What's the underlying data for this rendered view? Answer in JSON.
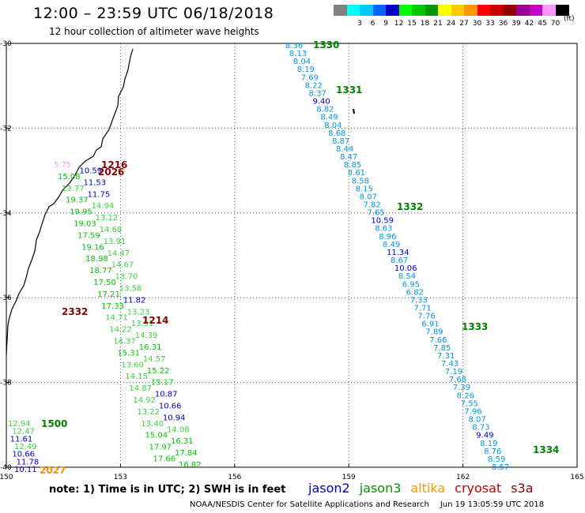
{
  "header": {
    "title": "12:00 – 23:59 UTC 06/18/2018",
    "subtitle": "12 hour collection of altimeter wave heights"
  },
  "scale": {
    "unit": "(ft)",
    "bins": [
      {
        "label": "",
        "color": "#808080"
      },
      {
        "label": "3",
        "color": "#00ffff"
      },
      {
        "label": "6",
        "color": "#00c8ff"
      },
      {
        "label": "9",
        "color": "#0064ff"
      },
      {
        "label": "12",
        "color": "#0000c8"
      },
      {
        "label": "15",
        "color": "#00ff00"
      },
      {
        "label": "18",
        "color": "#00c800"
      },
      {
        "label": "21",
        "color": "#009600"
      },
      {
        "label": "24",
        "color": "#ffff00"
      },
      {
        "label": "27",
        "color": "#ffc800"
      },
      {
        "label": "30",
        "color": "#ff9600"
      },
      {
        "label": "33",
        "color": "#ff0000"
      },
      {
        "label": "36",
        "color": "#c80000"
      },
      {
        "label": "39",
        "color": "#960000"
      },
      {
        "label": "42",
        "color": "#960096"
      },
      {
        "label": "45",
        "color": "#c800c8"
      },
      {
        "label": "70",
        "color": "#ff96ff"
      },
      {
        "label": "",
        "color": "#000000"
      }
    ]
  },
  "axes": {
    "lon_ticks": [
      "150",
      "153",
      "156",
      "159",
      "162",
      "165"
    ],
    "lat_ticks": [
      "-30",
      "-32",
      "-34",
      "-36",
      "-38",
      "-40"
    ]
  },
  "passes": [
    {
      "id": "1330",
      "color": "#008000"
    },
    {
      "id": "1331",
      "color": "#008000"
    },
    {
      "id": "1332",
      "color": "#008000"
    },
    {
      "id": "1333",
      "color": "#008000"
    },
    {
      "id": "1334",
      "color": "#008000"
    },
    {
      "id": "1214",
      "color": "#8b0000"
    },
    {
      "id": "2332",
      "color": "#8b0000"
    },
    {
      "id": "1216",
      "color": "#8b0000"
    },
    {
      "id": "2026",
      "color": "#8b0000"
    },
    {
      "id": "1500",
      "color": "#008000"
    },
    {
      "id": "2027",
      "color": "#ff8c00"
    }
  ],
  "tracks": {
    "jason3_east": [
      "8.36",
      "8.13",
      "8.04",
      "8.19",
      "7.69",
      "8.22",
      "8.37",
      "9.40",
      "8.82",
      "8.49",
      "8.04",
      "8.68",
      "8.87",
      "8.44",
      "8.47",
      "8.85",
      "8.61",
      "8.58",
      "8.15",
      "8.07",
      "7.82",
      "7.65",
      "10.59",
      "8.63",
      "8.96",
      "8.49",
      "11.34",
      "8.67",
      "10.06",
      "8.54",
      "6.95",
      "6.82",
      "7.33",
      "7.71",
      "7.76",
      "6.91",
      "7.89",
      "7.66",
      "7.85",
      "7.31",
      "7.43",
      "7.19",
      "7.68",
      "7.39",
      "8.26",
      "7.55",
      "7.96",
      "8.07",
      "8.73",
      "9.49",
      "8.19",
      "8.76",
      "8.59",
      "8.57"
    ],
    "jason3_coast": [
      "5.75",
      "10.59",
      "15.08",
      "11.53",
      "13.77",
      "11.75",
      "19.37",
      "14.94",
      "19.95",
      "13.12",
      "19.03",
      "14.68",
      "17.59",
      "13.91",
      "19.16",
      "14.47",
      "18.98",
      "14.67",
      "18.77",
      "13.70",
      "17.50",
      "13.58",
      "17.21",
      "11.82",
      "17.33",
      "13.23",
      "14.71",
      "13.91",
      "14.22",
      "14.39",
      "14.37",
      "16.31",
      "15.31",
      "14.57",
      "13.60",
      "15.22",
      "14.15",
      "15.17",
      "14.87",
      "10.87",
      "14.92",
      "10.66",
      "13.22",
      "10.94",
      "13.40",
      "14.08",
      "15.04",
      "16.31",
      "17.97",
      "17.84",
      "17.66",
      "16.82"
    ],
    "west": [
      "12.94",
      "12.47",
      "11.61",
      "12.49",
      "10.66",
      "11.78",
      "10.11"
    ]
  },
  "sensors": [
    {
      "name": "jason2",
      "color": "#0000c8"
    },
    {
      "name": "jason3",
      "color": "#009600"
    },
    {
      "name": "altika",
      "color": "#ff9600"
    },
    {
      "name": "cryosat",
      "color": "#c80000"
    },
    {
      "name": "s3a",
      "color": "#8b0000"
    }
  ],
  "note": "note:  1) Time is in UTC;  2) SWH is in feet",
  "footer": {
    "credit": "NOAA/NESDIS Center for Satellite Applications and Research",
    "timestamp": "Jun 19 13:05:59 UTC 2018"
  }
}
